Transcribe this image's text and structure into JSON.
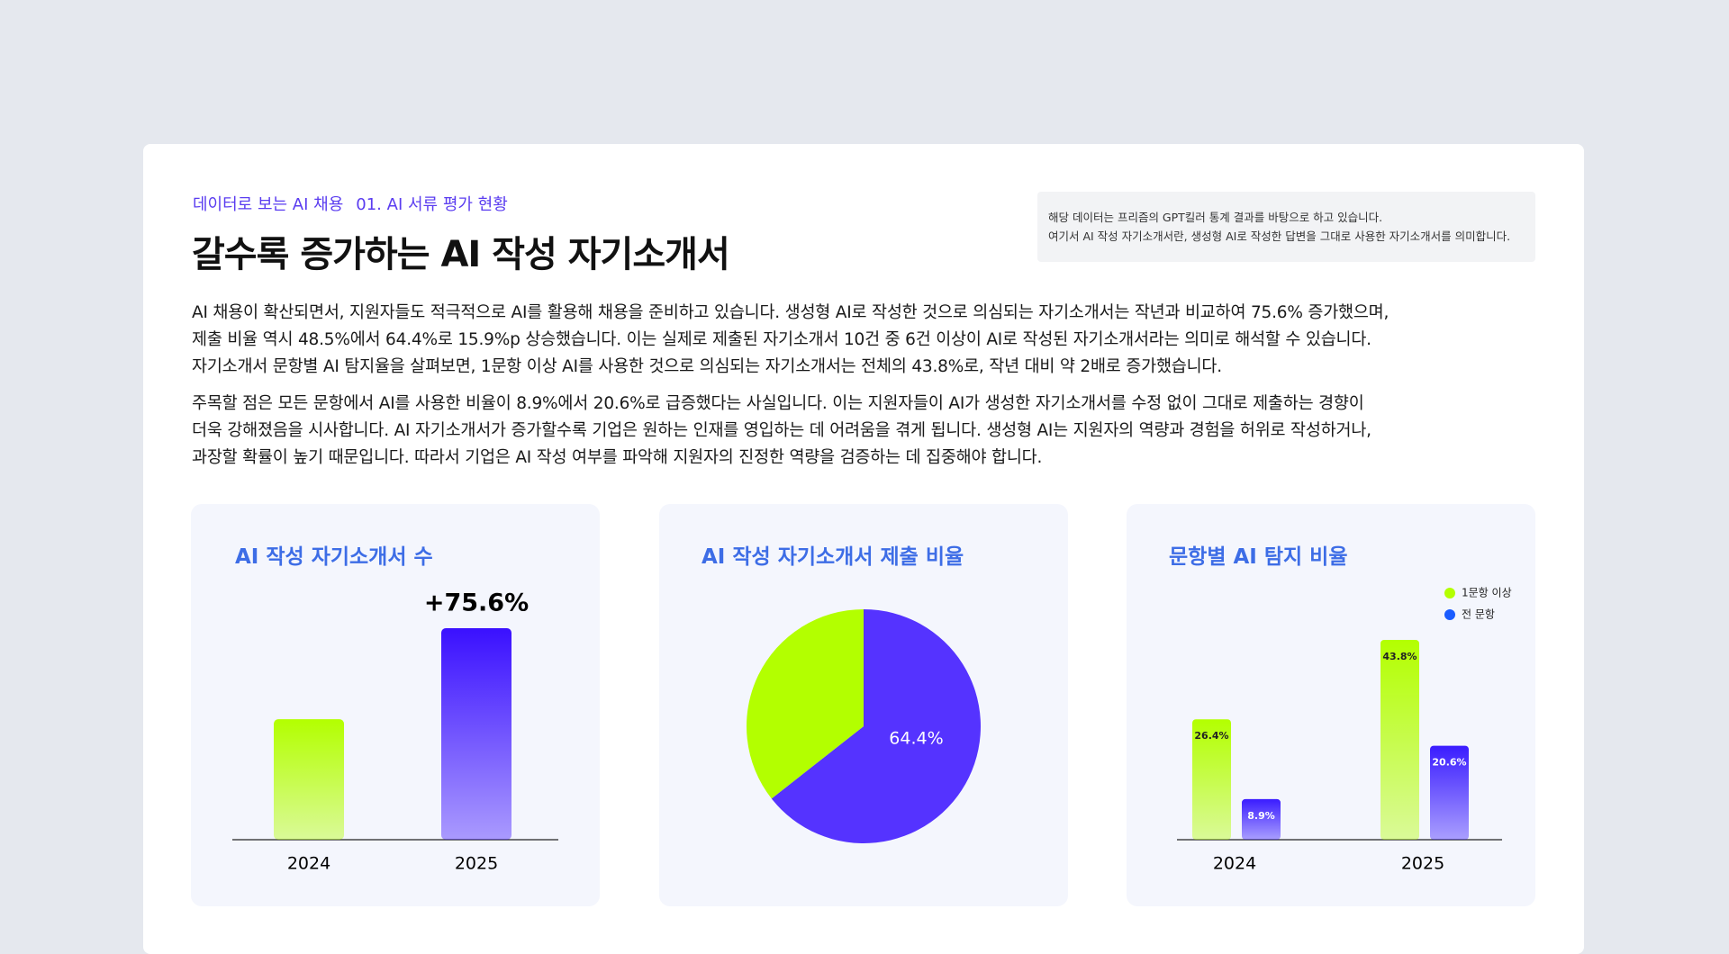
{
  "header": {
    "breadcrumb": [
      "데이터로 보는 AI 채용",
      "01. AI 서류 평가 현황"
    ],
    "title": "갈수록 증가하는 AI 작성 자기소개서"
  },
  "note": [
    "해당 데이터는 프리즘의 GPT킬러 통계 결과를 바탕으로 하고 있습니다.",
    "여기서 AI 작성 자기소개서란, 생성형 AI로 작성한 답변을 그대로 사용한 자기소개서를 의미합니다."
  ],
  "paragraphs": [
    [
      "AI 채용이 확산되면서, 지원자들도 적극적으로 AI를 활용해 채용을 준비하고 있습니다. 생성형 AI로 작성한 것으로 의심되는 자기소개서는 작년과 비교하여 75.6% 증가했으며,",
      "제출 비율 역시 48.5%에서 64.4%로 15.9%p 상승했습니다. 이는 실제로 제출된 자기소개서 10건 중 6건 이상이 AI로 작성된 자기소개서라는 의미로 해석할 수 있습니다.",
      "자기소개서 문항별 AI 탐지율을 살펴보면, 1문항 이상 AI를 사용한 것으로 의심되는 자기소개서는 전체의 43.8%로, 작년 대비 약 2배로 증가했습니다."
    ],
    [
      "주목할 점은 모든 문항에서 AI를 사용한 비율이 8.9%에서 20.6%로 급증했다는 사실입니다. 이는 지원자들이 AI가 생성한 자기소개서를 수정 없이 그대로 제출하는 경향이",
      "더욱 강해졌음을 시사합니다. AI 자기소개서가 증가할수록 기업은 원하는 인재를 영입하는 데 어려움을 겪게 됩니다. 생성형 AI는 지원자의 역량과 경험을 허위로 작성하거나,",
      "과장할 확률이 높기 때문입니다. 따라서 기업은 AI 작성 여부를 파악해 지원자의 진정한 역량을 검증하는 데 집중해야 합니다."
    ]
  ],
  "chart_data": [
    {
      "type": "bar",
      "title": "AI 작성 자기소개서 수",
      "categories": [
        "2024",
        "2025"
      ],
      "values": [
        100,
        175.6
      ],
      "colors": [
        "#b3ff00",
        "#3a10ff"
      ],
      "annotation": "+75.6%"
    },
    {
      "type": "pie",
      "title": "AI 작성 자기소개서 제출 비율",
      "values": [
        64.4,
        35.6
      ],
      "value_labels": [
        "64.4%",
        null
      ],
      "colors": [
        "#5533ff",
        "#b3ff00"
      ]
    },
    {
      "type": "grouped_bar",
      "title": "문항별 AI 탐지 비율",
      "categories": [
        "2024",
        "2025"
      ],
      "legend": "top-right",
      "series": [
        {
          "name": "1문항 이상",
          "color": "#b3ff00",
          "values": [
            26.4,
            43.8
          ],
          "value_labels": [
            "26.4%",
            "43.8%"
          ]
        },
        {
          "name": "전 문항",
          "color": "#3a1cff",
          "values": [
            8.9,
            20.6
          ],
          "value_labels": [
            "8.9%",
            "20.6%"
          ]
        }
      ]
    }
  ]
}
